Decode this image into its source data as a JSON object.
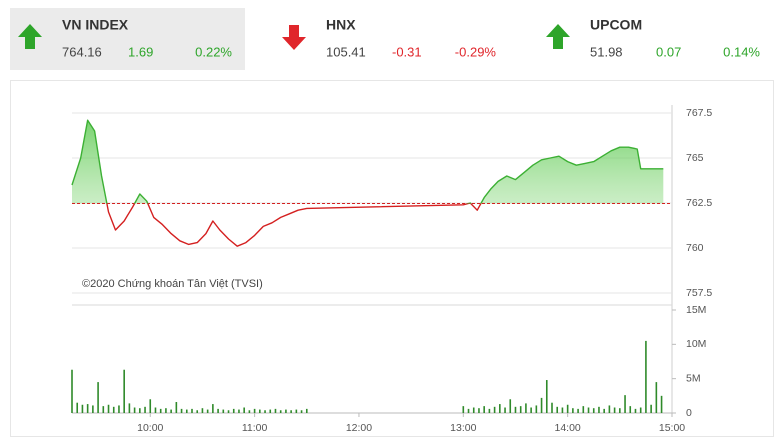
{
  "header": {
    "indices": [
      {
        "name": "VN INDEX",
        "value": "764.16",
        "change": "1.69",
        "percent": "0.22%",
        "direction": "up",
        "color": "#2ea52a"
      },
      {
        "name": "HNX",
        "value": "105.41",
        "change": "-0.31",
        "percent": "-0.29%",
        "direction": "down",
        "color": "#e0262b"
      },
      {
        "name": "UPCOM",
        "value": "51.98",
        "change": "0.07",
        "percent": "0.14%",
        "direction": "up",
        "color": "#2ea52a"
      }
    ]
  },
  "chart_data": [
    {
      "type": "line",
      "annotation": "©2020 Chứng khoán Tân Việt (TVSI)",
      "reference": 762.47,
      "color": "#3cb034",
      "down_color": "#d42020",
      "reference_color": "#d42020",
      "xlim": [
        555,
        900
      ],
      "ylim": [
        757.5,
        767.5
      ],
      "yticks": [
        757.5,
        760,
        762.5,
        765,
        767.5
      ],
      "grid": true,
      "x": [
        555,
        560,
        564,
        568,
        572,
        576,
        580,
        585,
        590,
        594,
        598,
        602,
        607,
        612,
        617,
        622,
        627,
        632,
        636,
        640,
        645,
        650,
        655,
        660,
        665,
        670,
        675,
        680,
        685,
        690,
        780,
        784,
        788,
        792,
        796,
        800,
        805,
        810,
        815,
        820,
        825,
        830,
        835,
        840,
        845,
        850,
        855,
        860,
        865,
        870,
        875,
        880,
        882,
        885,
        890,
        895
      ],
      "values": [
        763.5,
        765.0,
        767.1,
        766.5,
        764.0,
        762.0,
        761.0,
        761.5,
        762.3,
        763.0,
        762.6,
        761.7,
        761.3,
        760.8,
        760.4,
        760.2,
        760.3,
        760.8,
        761.5,
        761.0,
        760.5,
        760.1,
        760.3,
        760.7,
        761.2,
        761.4,
        761.7,
        761.9,
        762.1,
        762.2,
        762.4,
        762.5,
        762.1,
        762.8,
        763.3,
        763.7,
        764.0,
        763.8,
        764.2,
        764.6,
        764.9,
        765.0,
        765.1,
        764.8,
        764.6,
        764.7,
        764.8,
        765.1,
        765.4,
        765.6,
        765.6,
        765.5,
        764.4,
        764.4,
        764.4,
        764.4
      ]
    },
    {
      "type": "bar",
      "color": "#2f8a2a",
      "xlim": [
        555,
        900
      ],
      "xticks": [
        {
          "value": 600,
          "label": "10:00"
        },
        {
          "value": 660,
          "label": "11:00"
        },
        {
          "value": 720,
          "label": "12:00"
        },
        {
          "value": 780,
          "label": "13:00"
        },
        {
          "value": 840,
          "label": "14:00"
        },
        {
          "value": 900,
          "label": "15:00"
        }
      ],
      "ylim": [
        0,
        15
      ],
      "yticks": [
        0,
        {
          "value": 5,
          "label": "5M"
        },
        {
          "value": 10,
          "label": "10M"
        },
        {
          "value": 15,
          "label": "15M"
        }
      ],
      "x": [
        555,
        558,
        561,
        564,
        567,
        570,
        573,
        576,
        579,
        582,
        585,
        588,
        591,
        594,
        597,
        600,
        603,
        606,
        609,
        612,
        615,
        618,
        621,
        624,
        627,
        630,
        633,
        636,
        639,
        642,
        645,
        648,
        651,
        654,
        657,
        660,
        663,
        666,
        669,
        672,
        675,
        678,
        681,
        684,
        687,
        690,
        780,
        783,
        786,
        789,
        792,
        795,
        798,
        801,
        804,
        807,
        810,
        813,
        816,
        819,
        822,
        825,
        828,
        831,
        834,
        837,
        840,
        843,
        846,
        849,
        852,
        855,
        858,
        861,
        864,
        867,
        870,
        873,
        876,
        879,
        882,
        885,
        888,
        891,
        894
      ],
      "values": [
        6.3,
        1.5,
        1.2,
        1.3,
        1.1,
        4.5,
        1.0,
        1.2,
        0.9,
        1.1,
        6.3,
        1.4,
        0.8,
        0.7,
        0.9,
        2.0,
        0.8,
        0.6,
        0.7,
        0.5,
        1.6,
        0.6,
        0.5,
        0.6,
        0.4,
        0.7,
        0.5,
        1.3,
        0.6,
        0.5,
        0.4,
        0.6,
        0.5,
        0.8,
        0.4,
        0.6,
        0.5,
        0.4,
        0.5,
        0.6,
        0.4,
        0.5,
        0.4,
        0.5,
        0.4,
        0.6,
        1.0,
        0.6,
        0.8,
        0.7,
        1.0,
        0.6,
        0.9,
        1.3,
        0.8,
        2.0,
        0.9,
        1.0,
        1.4,
        0.8,
        1.1,
        2.2,
        4.8,
        1.5,
        0.9,
        0.8,
        1.2,
        0.7,
        0.6,
        1.0,
        0.8,
        0.7,
        0.9,
        0.6,
        1.1,
        0.8,
        0.7,
        2.6,
        1.0,
        0.6,
        0.8,
        10.5,
        1.2,
        4.5,
        2.5
      ]
    }
  ]
}
